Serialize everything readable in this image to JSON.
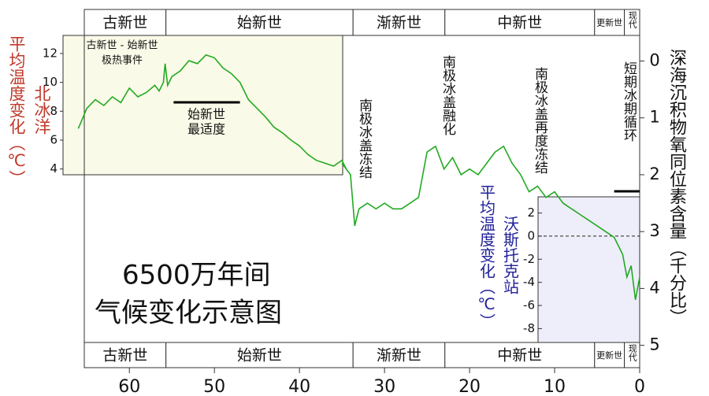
{
  "chart_data": [
    {
      "type": "line",
      "title": [
        "6500万年间",
        "气候变化示意图"
      ],
      "ylabel": "深海沉积物氧同位素含量（千分比）",
      "xlim": [
        65.3,
        0
      ],
      "xticks": [
        60,
        50,
        40,
        30,
        20,
        10,
        0
      ],
      "ylim": [
        4.95,
        -0.45
      ],
      "yticks": [
        0,
        1,
        2,
        3,
        4,
        5
      ],
      "color": "#22aa22",
      "epochs": [
        {
          "name": "古新世",
          "start": 65.3,
          "end": 55.7
        },
        {
          "name": "始新世",
          "start": 55.7,
          "end": 33.7
        },
        {
          "name": "渐新世",
          "start": 33.7,
          "end": 22.9
        },
        {
          "name": "中新世",
          "start": 22.9,
          "end": 5.3
        },
        {
          "name": "更新世",
          "start": 5.3,
          "end": 1.8
        },
        {
          "name": "现代",
          "start": 1.8,
          "end": 0
        }
      ],
      "annotations": [
        {
          "text": "南极冰盖冻结"
        },
        {
          "text": "南极冰盖融化"
        },
        {
          "text": "南极冰盖再度冻结"
        },
        {
          "text": "短期冰期循环",
          "span": [
            3,
            0
          ]
        }
      ],
      "x": [
        35,
        34,
        33.5,
        33,
        32,
        31,
        30,
        29,
        28,
        27,
        26,
        25.5,
        25,
        24,
        23,
        22,
        21,
        20,
        19,
        18,
        17,
        16,
        15,
        14,
        13,
        12,
        11,
        10,
        9,
        8,
        7,
        6,
        5,
        4,
        3,
        2,
        1.5,
        1,
        0.5,
        0
      ],
      "values": [
        1.8,
        2.0,
        2.9,
        2.6,
        2.5,
        2.6,
        2.5,
        2.6,
        2.6,
        2.5,
        2.4,
        2.0,
        1.6,
        1.5,
        1.9,
        1.7,
        2.0,
        1.9,
        2.0,
        1.8,
        1.6,
        1.5,
        1.8,
        2.0,
        2.3,
        2.2,
        2.4,
        2.3,
        2.5,
        2.6,
        2.7,
        2.8,
        2.9,
        3.0,
        3.1,
        3.4,
        3.8,
        3.6,
        4.2,
        3.8
      ]
    },
    {
      "type": "line",
      "ylabel": "平均温度变化（℃）",
      "location": "北冰洋",
      "ylim": [
        3.6,
        13.25
      ],
      "yticks": [
        4,
        6,
        8,
        10,
        12
      ],
      "color": "#22aa22",
      "annotations": [
        {
          "text": [
            "古新世 - 始新世",
            "极热事件"
          ]
        },
        {
          "text": [
            "始新世",
            "最适度"
          ],
          "span": [
            54.8,
            47
          ]
        }
      ],
      "x": [
        66,
        65,
        64,
        63,
        62,
        61,
        60,
        59,
        58,
        57,
        56.5,
        56,
        55.8,
        55.5,
        55,
        54,
        53,
        52,
        51,
        50,
        49,
        48,
        47,
        46,
        45,
        44,
        43,
        42,
        41,
        40,
        39,
        38,
        37,
        36,
        35,
        34.5
      ],
      "values": [
        6.8,
        8.2,
        8.8,
        8.4,
        9.0,
        8.6,
        9.6,
        9.0,
        9.3,
        9.8,
        9.4,
        10.0,
        11.3,
        9.8,
        10.4,
        10.8,
        11.5,
        11.3,
        11.9,
        11.7,
        11.0,
        10.6,
        10.0,
        8.8,
        8.2,
        7.6,
        6.9,
        6.5,
        6.0,
        5.6,
        5.0,
        4.6,
        4.4,
        4.2,
        4.6,
        4.0
      ]
    },
    {
      "type": "axis",
      "ylabel": "平均温度变化（℃）",
      "location": "沃斯托克站",
      "ylim": [
        -9.2,
        3.4
      ],
      "yticks": [
        -8,
        -6,
        -4,
        -2,
        0,
        2
      ],
      "reference_line": 0
    }
  ]
}
